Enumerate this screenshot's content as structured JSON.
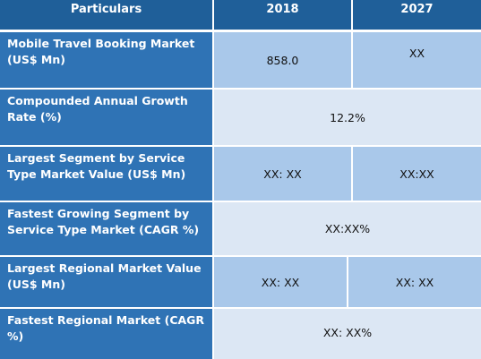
{
  "header": {
    "particulars": "Particulars",
    "col_2018": "2018",
    "col_2027": "2027"
  },
  "rows": [
    {
      "label": "Mobile Travel Booking Market (US$ Mn)",
      "v2018": "858.0",
      "v2027": "XX"
    },
    {
      "label": "Compounded Annual Growth Rate (%)",
      "merged": "12.2%"
    },
    {
      "label": "Largest Segment by Service Type Market Value (US$ Mn)",
      "v2018": "XX: XX",
      "v2027": "XX:XX"
    },
    {
      "label": "Fastest Growing Segment by Service Type Market (CAGR %)",
      "merged": "XX:XX%"
    },
    {
      "label": "Largest Regional Market Value (US$ Mn)",
      "v2018": "XX: XX",
      "v2027": "XX: XX"
    },
    {
      "label": "Fastest Regional Market (CAGR %)",
      "merged": "XX: XX%"
    }
  ]
}
